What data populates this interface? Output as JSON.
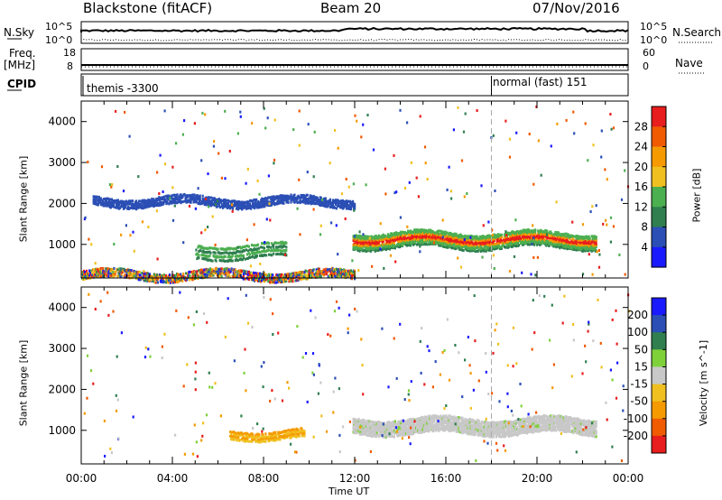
{
  "header": {
    "station": "Blackstone (fitACF)",
    "beam": "Beam 20",
    "date": "07/Nov/2016"
  },
  "status_panel": {
    "left_label_top": "N.Sky",
    "left_label_freq": "Freq.",
    "left_label_mhz": "[MHz]",
    "left_label_cpid": "CPID",
    "left_ticks_top": [
      "10^5",
      "10^0"
    ],
    "left_ticks_freq": [
      "18",
      "8"
    ],
    "right_label_top": "N.Search",
    "right_label_nave": "Nave",
    "right_ticks_top": [
      "10^5",
      "10^0"
    ],
    "right_ticks_nave": [
      "60",
      "0"
    ],
    "cpid_entries": [
      {
        "text": "themis -3300",
        "time": 0.0
      },
      {
        "text": "normal (fast) 151",
        "time": 18.0
      }
    ]
  },
  "colors": {
    "power": [
      "#1a1aff",
      "#2b4fb5",
      "#2f7f4f",
      "#4caf50",
      "#f0c020",
      "#f59a00",
      "#f05a00",
      "#e81d1d"
    ],
    "velocity": [
      "#1a1aff",
      "#2b4fb5",
      "#2f7f4f",
      "#7fd13a",
      "#c8c8c8",
      "#f0c020",
      "#f59a00",
      "#f05a00",
      "#e81d1d"
    ]
  },
  "chart_data": [
    {
      "type": "heatmap",
      "title": "",
      "xlabel": "Time UT",
      "ylabel": "Slant Range [km]",
      "xlim": [
        0,
        24
      ],
      "ylim": [
        180,
        4500
      ],
      "x_ticks": [
        "00:00",
        "04:00",
        "08:00",
        "12:00",
        "16:00",
        "20:00",
        "00:00"
      ],
      "y_ticks": [
        "1000",
        "2000",
        "3000",
        "4000"
      ],
      "colorbar": {
        "label": "Power [dB]",
        "ticks": [
          "4",
          "8",
          "12",
          "16",
          "20",
          "24",
          "28"
        ],
        "range": [
          0,
          30
        ]
      },
      "features": [
        {
          "name": "ground scatter low",
          "t_start": 0.0,
          "t_end": 12.0,
          "range_km": 300,
          "level": 12
        },
        {
          "name": "main echo band",
          "t_start": 11.9,
          "t_end": 22.6,
          "range_km": 1150,
          "level": 22
        },
        {
          "name": "upper diffuse",
          "t_start": 0.5,
          "t_end": 12.0,
          "range_km": 2100,
          "level": 6
        },
        {
          "name": "evening band",
          "t_start": 5.0,
          "t_end": 9.0,
          "range_km": 900,
          "level": 13
        }
      ]
    },
    {
      "type": "heatmap",
      "title": "",
      "xlabel": "Time UT",
      "ylabel": "Slant Range [km]",
      "xlim": [
        0,
        24
      ],
      "ylim": [
        180,
        4500
      ],
      "x_ticks": [
        "00:00",
        "04:00",
        "08:00",
        "12:00",
        "16:00",
        "20:00",
        "00:00"
      ],
      "y_ticks": [
        "1000",
        "2000",
        "3000",
        "4000"
      ],
      "colorbar": {
        "label": "Velocity [m s^-1]",
        "ticks": [
          "200",
          "100",
          "50",
          "15",
          "-15",
          "-50",
          "-100",
          "-200"
        ],
        "range": [
          -250,
          250
        ]
      },
      "features": [
        {
          "name": "ground scatter band",
          "t_start": 11.9,
          "t_end": 22.6,
          "range_km": 1150,
          "velocity": 0
        },
        {
          "name": "westward flow",
          "t_start": 6.5,
          "t_end": 9.8,
          "range_km": 950,
          "velocity": -40
        }
      ]
    }
  ]
}
